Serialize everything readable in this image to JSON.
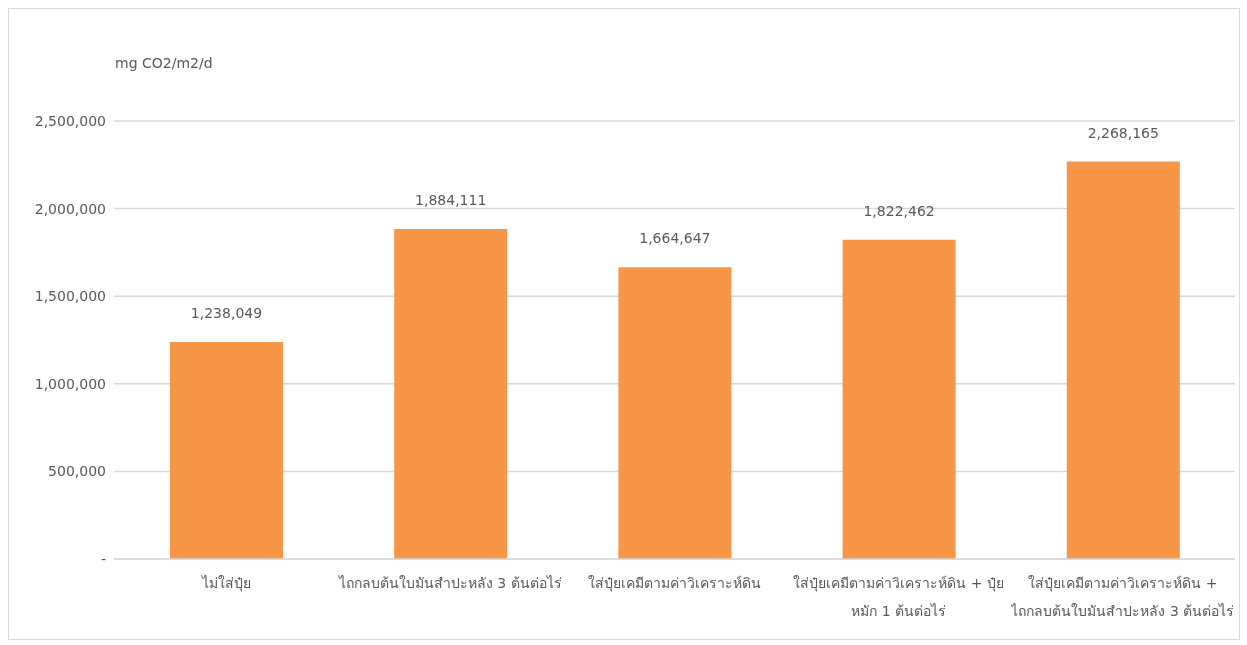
{
  "chart_data": {
    "type": "bar",
    "ylabel": "mg CO2/m2/d",
    "categories": [
      "ไม่ใส่ปุ๋ย",
      "ไถกลบต้นใบมันสำปะหลัง 3 ต้นต่อไร่",
      "ใส่ปุ๋ยเคมีตามค่าวิเคราะห์ดิน",
      "ใส่ปุ๋ยเคมีตามค่าวิเคราะห์ดิน + ปุ๋ยหมัก 1 ต้นต่อไร่",
      "ใส่ปุ๋ยเคมีตามค่าวิเคราะห์ดิน + ไถกลบต้นใบมันสำปะหลัง 3 ต้นต่อไร่"
    ],
    "values": [
      1238049,
      1884111,
      1664647,
      1822462,
      2268165
    ],
    "value_labels": [
      "1,238,049",
      "1,884,111",
      "1,664,647",
      "1,822,462",
      "2,268,165"
    ],
    "color": "#f79646",
    "ylim": [
      0,
      2500000
    ],
    "yticks": [
      {
        "value": 0,
        "label": "-"
      },
      {
        "value": 500000,
        "label": "500,000"
      },
      {
        "value": 1000000,
        "label": "1,000,000"
      },
      {
        "value": 1500000,
        "label": "1,500,000"
      },
      {
        "value": 2000000,
        "label": "2,000,000"
      },
      {
        "value": 2500000,
        "label": "2,500,000"
      }
    ],
    "grid": "y"
  }
}
